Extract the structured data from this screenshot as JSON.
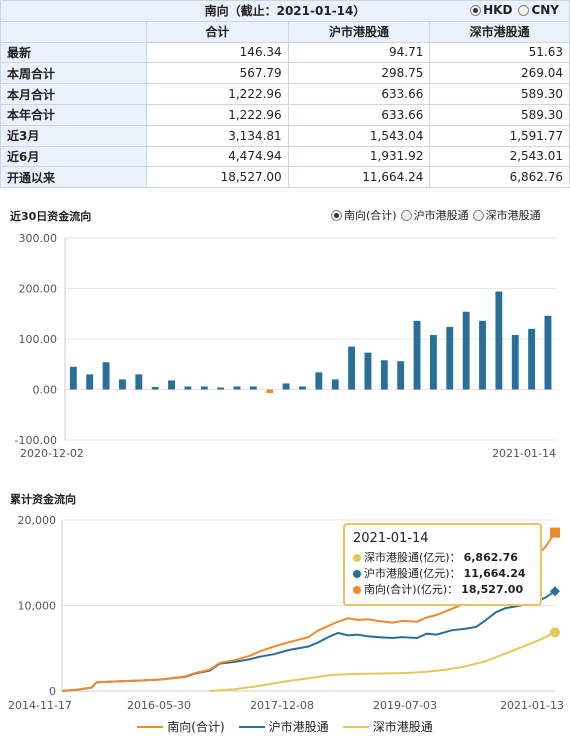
{
  "summary": {
    "title": "南向（截止：2021-01-14）",
    "currency": [
      {
        "label": "HKD",
        "selected": true
      },
      {
        "label": "CNY",
        "selected": false
      }
    ],
    "columns": [
      "合计",
      "沪市港股通",
      "深市港股通"
    ],
    "rows": [
      {
        "label": "最新",
        "values": [
          "146.34",
          "94.71",
          "51.63"
        ]
      },
      {
        "label": "本周合计",
        "values": [
          "567.79",
          "298.75",
          "269.04"
        ]
      },
      {
        "label": "本月合计",
        "values": [
          "1,222.96",
          "633.66",
          "589.30"
        ]
      },
      {
        "label": "本年合计",
        "values": [
          "1,222.96",
          "633.66",
          "589.30"
        ]
      },
      {
        "label": "近3月",
        "values": [
          "3,134.81",
          "1,543.04",
          "1,591.77"
        ]
      },
      {
        "label": "近6月",
        "values": [
          "4,474.94",
          "1,931.92",
          "2,543.01"
        ]
      },
      {
        "label": "开通以来",
        "values": [
          "18,527.00",
          "11,664.24",
          "6,862.76"
        ]
      }
    ]
  },
  "flow30": {
    "title": "近30日资金流向",
    "options": [
      {
        "label": "南向(合计)",
        "selected": true
      },
      {
        "label": "沪市港股通",
        "selected": false
      },
      {
        "label": "深市港股通",
        "selected": false
      }
    ]
  },
  "cumulative": {
    "title": "累计资金流向"
  },
  "tooltip": {
    "date": "2021-01-14",
    "rows": [
      {
        "label": "深市港股通(亿元)：",
        "value": "6,862.76",
        "color": "#e3c75a"
      },
      {
        "label": "沪市港股通(亿元)：",
        "value": "11,664.24",
        "color": "#2a6f97"
      },
      {
        "label": "南向(合计)(亿元)：",
        "value": "18,527.00",
        "color": "#ef8a2c"
      }
    ]
  },
  "legend": [
    {
      "label": "南向(合计)",
      "color": "#ef8a2c"
    },
    {
      "label": "沪市港股通",
      "color": "#2a6f97"
    },
    {
      "label": "深市港股通",
      "color": "#e3c75a"
    }
  ],
  "chart_data": [
    {
      "type": "bar",
      "title": "近30日资金流向",
      "x_start": "2020-12-02",
      "x_end": "2021-01-14",
      "ylim": [
        -100,
        300
      ],
      "yticks": [
        "300.00",
        "200.00",
        "100.00",
        "0.00",
        "-100.00"
      ],
      "xticks": [
        "2020-12-02",
        "2021-01-14"
      ],
      "series": [
        {
          "name": "南向(合计)",
          "values": [
            45,
            30,
            54,
            20,
            30,
            5,
            18,
            6,
            6,
            4,
            6,
            6,
            -7,
            12,
            6,
            34,
            20,
            85,
            73,
            58,
            56,
            136,
            108,
            124,
            154,
            136,
            194,
            108,
            120,
            146
          ]
        }
      ],
      "colors": {
        "positive": "#2a6f97",
        "negative": "#ef8a2c"
      },
      "grid": true
    },
    {
      "type": "line",
      "title": "累计资金流向",
      "ylim": [
        0,
        20000
      ],
      "yticks": [
        "20,000",
        "10,000",
        "0"
      ],
      "xticks": [
        "2014-11-17",
        "2016-05-30",
        "2017-12-08",
        "2019-07-03",
        "2021-01-13"
      ],
      "series": [
        {
          "name": "南向(合计)",
          "color": "#ef8a2c",
          "points": [
            [
              0,
              0
            ],
            [
              0.03,
              150
            ],
            [
              0.06,
              400
            ],
            [
              0.07,
              1000
            ],
            [
              0.1,
              1100
            ],
            [
              0.15,
              1200
            ],
            [
              0.2,
              1350
            ],
            [
              0.25,
              1700
            ],
            [
              0.27,
              2100
            ],
            [
              0.3,
              2500
            ],
            [
              0.32,
              3300
            ],
            [
              0.35,
              3600
            ],
            [
              0.38,
              4100
            ],
            [
              0.4,
              4600
            ],
            [
              0.43,
              5200
            ],
            [
              0.46,
              5700
            ],
            [
              0.5,
              6300
            ],
            [
              0.52,
              7100
            ],
            [
              0.54,
              7600
            ],
            [
              0.56,
              8100
            ],
            [
              0.58,
              8500
            ],
            [
              0.6,
              8300
            ],
            [
              0.62,
              8400
            ],
            [
              0.64,
              8200
            ],
            [
              0.67,
              8000
            ],
            [
              0.69,
              8200
            ],
            [
              0.72,
              8100
            ],
            [
              0.74,
              8600
            ],
            [
              0.76,
              8900
            ],
            [
              0.79,
              9600
            ],
            [
              0.82,
              10300
            ],
            [
              0.85,
              10700
            ],
            [
              0.87,
              11200
            ],
            [
              0.89,
              11700
            ],
            [
              0.9,
              12300
            ],
            [
              0.92,
              13800
            ],
            [
              0.94,
              14800
            ],
            [
              0.96,
              15800
            ],
            [
              0.98,
              16800
            ],
            [
              1.0,
              18527
            ]
          ]
        },
        {
          "name": "沪市港股通",
          "color": "#2a6f97",
          "points": [
            [
              0,
              0
            ],
            [
              0.03,
              150
            ],
            [
              0.06,
              400
            ],
            [
              0.07,
              1000
            ],
            [
              0.1,
              1100
            ],
            [
              0.15,
              1200
            ],
            [
              0.2,
              1350
            ],
            [
              0.25,
              1650
            ],
            [
              0.27,
              2050
            ],
            [
              0.3,
              2400
            ],
            [
              0.32,
              3200
            ],
            [
              0.35,
              3400
            ],
            [
              0.38,
              3700
            ],
            [
              0.4,
              4000
            ],
            [
              0.43,
              4300
            ],
            [
              0.46,
              4800
            ],
            [
              0.5,
              5200
            ],
            [
              0.52,
              5700
            ],
            [
              0.54,
              6300
            ],
            [
              0.56,
              6800
            ],
            [
              0.58,
              6500
            ],
            [
              0.6,
              6600
            ],
            [
              0.62,
              6400
            ],
            [
              0.64,
              6300
            ],
            [
              0.67,
              6200
            ],
            [
              0.69,
              6300
            ],
            [
              0.72,
              6200
            ],
            [
              0.74,
              6700
            ],
            [
              0.76,
              6600
            ],
            [
              0.79,
              7100
            ],
            [
              0.82,
              7300
            ],
            [
              0.84,
              7500
            ],
            [
              0.86,
              8300
            ],
            [
              0.88,
              9200
            ],
            [
              0.9,
              9700
            ],
            [
              0.93,
              10000
            ],
            [
              0.96,
              10400
            ],
            [
              0.98,
              10900
            ],
            [
              1.0,
              11664
            ]
          ]
        },
        {
          "name": "深市港股通",
          "color": "#e3c75a",
          "points": [
            [
              0.3,
              0
            ],
            [
              0.35,
              200
            ],
            [
              0.4,
              600
            ],
            [
              0.45,
              1100
            ],
            [
              0.5,
              1500
            ],
            [
              0.55,
              1900
            ],
            [
              0.6,
              2000
            ],
            [
              0.65,
              2050
            ],
            [
              0.7,
              2100
            ],
            [
              0.74,
              2250
            ],
            [
              0.78,
              2500
            ],
            [
              0.82,
              2900
            ],
            [
              0.86,
              3500
            ],
            [
              0.9,
              4400
            ],
            [
              0.94,
              5300
            ],
            [
              0.97,
              6000
            ],
            [
              1.0,
              6863
            ]
          ]
        }
      ],
      "grid": true
    }
  ]
}
